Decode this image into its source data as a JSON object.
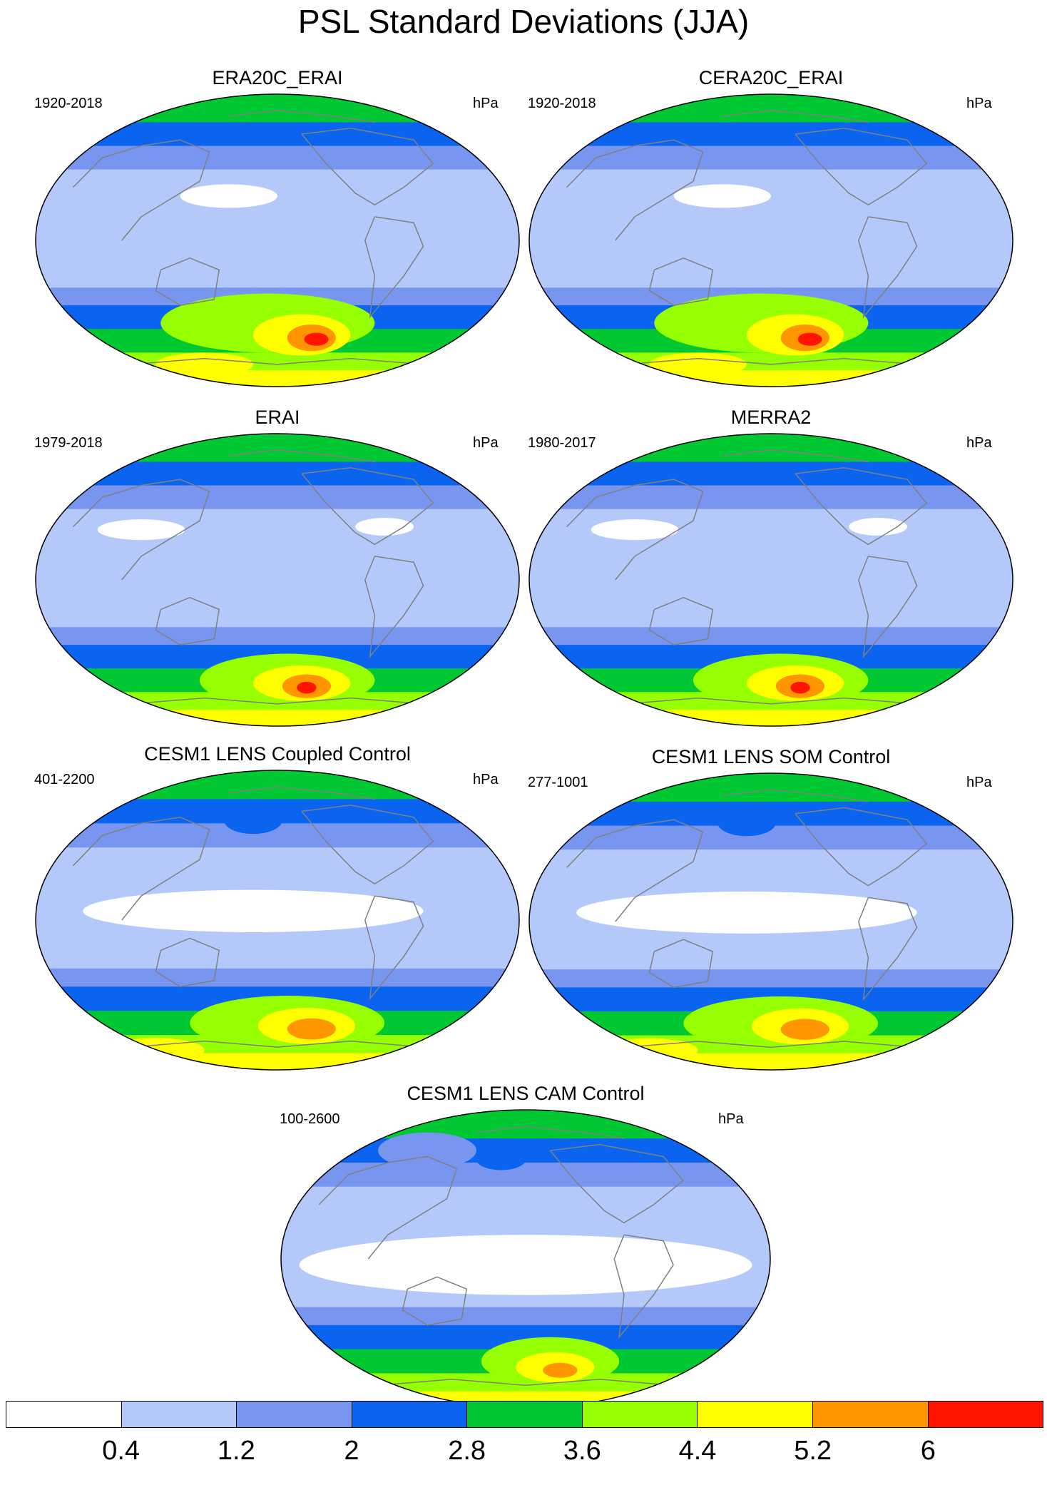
{
  "title": "PSL Standard Deviations (JJA)",
  "panels": [
    {
      "name": "ERA20C_ERAI",
      "period": "1920-2018",
      "units": "hPa",
      "variant": "reanalysis_a"
    },
    {
      "name": "CERA20C_ERAI",
      "period": "1920-2018",
      "units": "hPa",
      "variant": "reanalysis_a"
    },
    {
      "name": "ERAI",
      "period": "1979-2018",
      "units": "hPa",
      "variant": "reanalysis_b"
    },
    {
      "name": "MERRA2",
      "period": "1980-2017",
      "units": "hPa",
      "variant": "reanalysis_b"
    },
    {
      "name": "CESM1 LENS Coupled Control",
      "period": "401-2200",
      "units": "hPa",
      "variant": "model"
    },
    {
      "name": "CESM1 LENS SOM Control",
      "period": "277-1001",
      "units": "hPa",
      "variant": "model"
    },
    {
      "name": "CESM1 LENS CAM Control",
      "period": "100-2600",
      "units": "hPa",
      "variant": "cam"
    }
  ],
  "colorbar": {
    "labels": [
      "0.4",
      "1.2",
      "2",
      "2.8",
      "3.6",
      "4.4",
      "5.2",
      "6"
    ],
    "colors": [
      "#ffffff",
      "#b4c8fa",
      "#7896f0",
      "#0a64f0",
      "#00c832",
      "#96ff00",
      "#ffff00",
      "#ff9600",
      "#ff1400"
    ]
  },
  "map_legend": {
    "land_outline_color": "#808080",
    "map_edge_color": "#000000"
  }
}
